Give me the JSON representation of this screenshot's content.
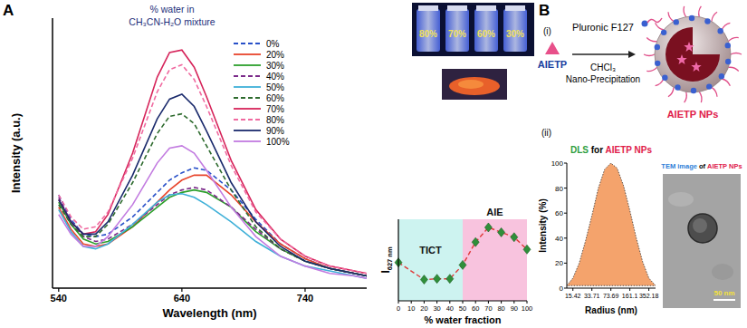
{
  "chart_data": [
    {
      "type": "line",
      "xlabel": "Wavelength (nm)",
      "ylabel": "Intensity (a.u.)",
      "legend_title": [
        "% water in",
        "CH₃CN-H₂O mixture"
      ],
      "legend": "upper right",
      "tick_labels": "x",
      "x": [
        540,
        550,
        560,
        570,
        580,
        600,
        620,
        630,
        640,
        650,
        660,
        680,
        700,
        720,
        740,
        760,
        780,
        790
      ],
      "xlim": [
        535,
        790
      ],
      "xticks": [
        540,
        640,
        740
      ],
      "ylim": [
        0,
        110
      ],
      "series": [
        {
          "name": "0%",
          "color": "#2850c8",
          "line_style": "dashed",
          "values": [
            38,
            28,
            22,
            21,
            22,
            29,
            39,
            44,
            47,
            49,
            48,
            40,
            28,
            18,
            12,
            8,
            6,
            5
          ]
        },
        {
          "name": "20%",
          "color": "#e8452c",
          "line_style": "solid",
          "values": [
            33,
            24,
            18,
            17,
            18,
            25,
            35,
            40,
            44,
            46,
            46,
            38,
            27,
            18,
            12,
            8,
            6,
            5
          ]
        },
        {
          "name": "30%",
          "color": "#2ca02c",
          "line_style": "solid",
          "values": [
            35,
            26,
            20,
            18,
            19,
            25,
            33,
            37,
            39,
            40,
            39,
            33,
            23,
            16,
            11,
            8,
            6,
            5
          ]
        },
        {
          "name": "40%",
          "color": "#7b2a8a",
          "line_style": "dashed",
          "values": [
            37,
            27,
            21,
            19,
            20,
            26,
            34,
            38,
            40,
            41,
            40,
            33,
            24,
            16,
            11,
            8,
            6,
            5
          ]
        },
        {
          "name": "50%",
          "color": "#3fb0d8",
          "line_style": "solid",
          "values": [
            32,
            23,
            17,
            16,
            18,
            26,
            35,
            38,
            38.5,
            37,
            34,
            27,
            19,
            13,
            9,
            7,
            5,
            4
          ]
        },
        {
          "name": "60%",
          "color": "#2e6b2e",
          "line_style": "dashed",
          "values": [
            34,
            26,
            21,
            21,
            26,
            43,
            63,
            70,
            71,
            67,
            58,
            40,
            25,
            16,
            11,
            8,
            6,
            5
          ]
        },
        {
          "name": "70%",
          "color": "#d6245a",
          "line_style": "solid",
          "values": [
            36,
            27,
            22,
            23,
            30,
            55,
            86,
            96,
            97,
            90,
            78,
            52,
            32,
            20,
            13,
            9,
            7,
            6
          ]
        },
        {
          "name": "80%",
          "color": "#f06aa0",
          "line_style": "dashed",
          "values": [
            38,
            29,
            24,
            25,
            31,
            53,
            80,
            89,
            91,
            85,
            74,
            50,
            31,
            20,
            13,
            9,
            7,
            6
          ]
        },
        {
          "name": "90%",
          "color": "#1a2a6c",
          "line_style": "solid",
          "values": [
            36,
            27,
            22,
            22,
            27,
            46,
            69,
            77,
            79,
            74,
            64,
            43,
            27,
            17,
            11,
            8,
            6,
            5
          ]
        },
        {
          "name": "100%",
          "color": "#c27be0",
          "line_style": "solid",
          "values": [
            30,
            22,
            17,
            17,
            21,
            34,
            51,
            57,
            58,
            55,
            48,
            33,
            21,
            13,
            9,
            6,
            5,
            4
          ]
        }
      ]
    },
    {
      "type": "line",
      "xlabel": "% water fraction",
      "ylabel": "I627 nm",
      "tick_labels": "x",
      "x": [
        0,
        20,
        30,
        40,
        50,
        60,
        70,
        80,
        90,
        100
      ],
      "xlim": [
        0,
        100
      ],
      "xticks": [
        0,
        10,
        20,
        30,
        40,
        50,
        60,
        70,
        80,
        90,
        100
      ],
      "ylim": [
        0,
        100
      ],
      "regions": [
        {
          "label": "TICT",
          "from": 0,
          "to": 50,
          "color": "#cdf3f0"
        },
        {
          "label": "AIE",
          "from": 50,
          "to": 100,
          "color": "#f8c3de"
        }
      ],
      "series": [
        {
          "color": "#e03a3a",
          "line_style": "dashed",
          "marker": "diamond",
          "values": [
            47,
            26,
            27,
            27,
            44,
            72,
            90,
            84,
            78,
            63
          ]
        }
      ]
    },
    {
      "type": "area",
      "title": "DLS for AIETP NPs",
      "xlabel": "Radius (nm)",
      "ylabel": "Intensity (%)",
      "log": "x",
      "x": [
        12,
        15.42,
        20,
        26,
        33.71,
        44,
        57,
        73.69,
        95,
        124,
        161.1,
        210,
        273,
        352.18,
        464
      ],
      "values": [
        2,
        8,
        20,
        38,
        58,
        80,
        95,
        100,
        96,
        82,
        62,
        40,
        21,
        8,
        2
      ],
      "xlim": [
        12,
        464
      ],
      "xticks": [
        15.42,
        33.71,
        73.69,
        161.1,
        352.18
      ],
      "ylim": [
        0,
        100
      ],
      "yticks": [
        0,
        20,
        40,
        60,
        80,
        100
      ],
      "color": "#f4a36c"
    }
  ],
  "panels": {
    "A": {
      "label": "A",
      "vial_labels": [
        "80%",
        "70%",
        "60%",
        "30%"
      ]
    },
    "B": {
      "label": "B",
      "step_i": "(i)",
      "step_ii": "(ii)",
      "reagent": "Pluronic F127",
      "compound": "AIETP",
      "solvent": "CHCl₃",
      "method": "Nano-Precipitation",
      "product": "AIETP NPs",
      "tem_title": [
        {
          "text": "TEM image",
          "color": "#2f7fd8"
        },
        {
          "text": "of",
          "color": "#000000"
        },
        {
          "text": "AIETP NPs",
          "color": "#e0204a"
        }
      ],
      "scale_bar": "50 nm"
    }
  }
}
